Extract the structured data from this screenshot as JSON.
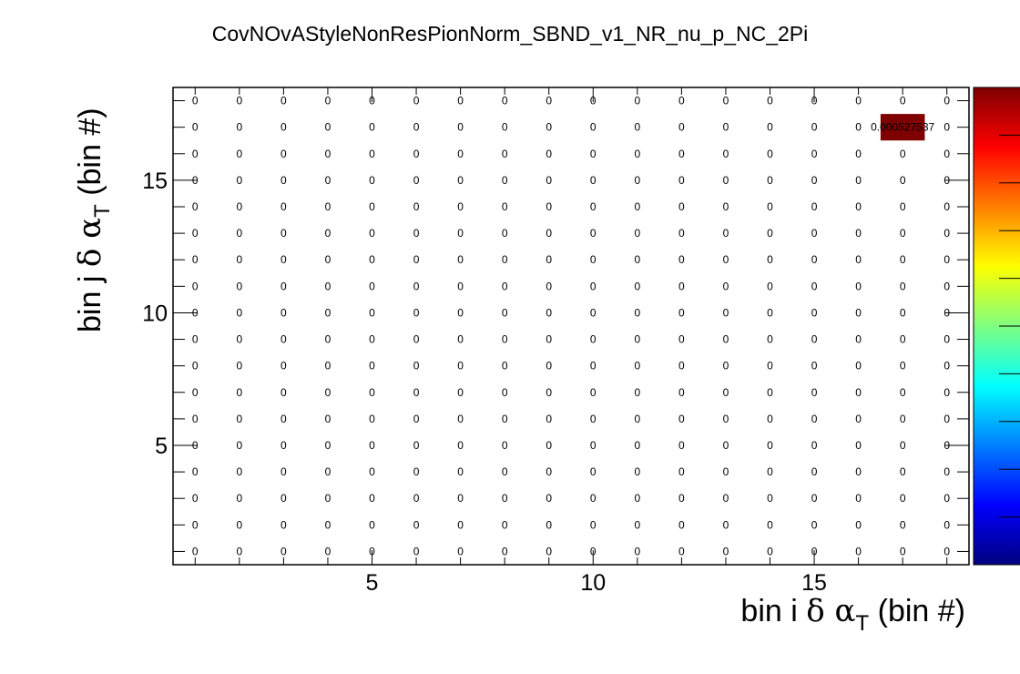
{
  "chart_data": {
    "type": "heatmap",
    "title": "CovNOvAStyleNonResPionNorm_SBND_v1_NR_nu_p_NC_2Pi",
    "xlabel": {
      "prefix": "bin i ",
      "greek": "δ α",
      "sub": "T",
      "suffix": " (bin #)"
    },
    "ylabel": {
      "prefix": "bin j ",
      "greek": "δ α",
      "sub": "T",
      "suffix": " (bin #)"
    },
    "xlim": [
      0.5,
      18.5
    ],
    "ylim": [
      0.5,
      18.5
    ],
    "x_ticks": [
      "5",
      "10",
      "15"
    ],
    "y_ticks": [
      "5",
      "10",
      "15"
    ],
    "nbins_x": 18,
    "nbins_y": 18,
    "default_value": 0,
    "default_label": "0",
    "nonzero_cells": [
      {
        "i": 17,
        "j": 17,
        "value": 0.000527537,
        "label": "0.000527537"
      }
    ],
    "colormap": "rainbow",
    "colors": {
      "cell_fill": "#7f0000",
      "palette": [
        "#00007f",
        "#0000ff",
        "#007fff",
        "#00ffff",
        "#7fff7f",
        "#ffff00",
        "#ff7f00",
        "#ff0000",
        "#7f0000"
      ]
    },
    "grid": false
  }
}
